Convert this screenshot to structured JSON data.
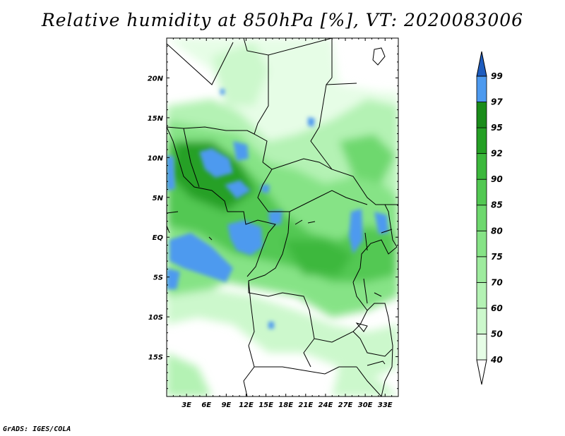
{
  "title": "Relative humidity at 850hPa [%], VT: 2020083006",
  "credit": "GrADS: IGES/COLA",
  "map": {
    "projection": "lat-lon",
    "lon_range": [
      0,
      35
    ],
    "lat_range": [
      -20,
      25
    ],
    "lon_ticks": [
      "3E",
      "6E",
      "9E",
      "12E",
      "15E",
      "18E",
      "21E",
      "24E",
      "27E",
      "30E",
      "33E"
    ],
    "lat_ticks": [
      "20N",
      "15N",
      "10N",
      "5N",
      "EQ",
      "5S",
      "10S",
      "15S"
    ]
  },
  "colorbar": {
    "levels": [
      "40",
      "50",
      "60",
      "70",
      "75",
      "80",
      "85",
      "90",
      "92",
      "95",
      "97",
      "99"
    ],
    "colors": [
      "#ffffff",
      "#e6fde6",
      "#ccf8cc",
      "#b4f2b4",
      "#9eeb9e",
      "#86e386",
      "#6ed86e",
      "#52c852",
      "#3cb83c",
      "#25a025",
      "#1a8c1a",
      "#4d9aef",
      "#2a7adf",
      "#1e5cbe"
    ]
  },
  "chart_data": {
    "type": "heatmap",
    "title": "Relative humidity at 850hPa [%], VT: 2020083006",
    "xlabel": "",
    "ylabel": "",
    "x_ticks": [
      "3E",
      "6E",
      "9E",
      "12E",
      "15E",
      "18E",
      "21E",
      "24E",
      "27E",
      "30E",
      "33E"
    ],
    "y_ticks": [
      "20N",
      "15N",
      "10N",
      "5N",
      "EQ",
      "5S",
      "10S",
      "15S"
    ],
    "xlim": [
      0,
      35
    ],
    "ylim": [
      -20,
      25
    ],
    "legend": "colorbar right",
    "units": "%"
  }
}
